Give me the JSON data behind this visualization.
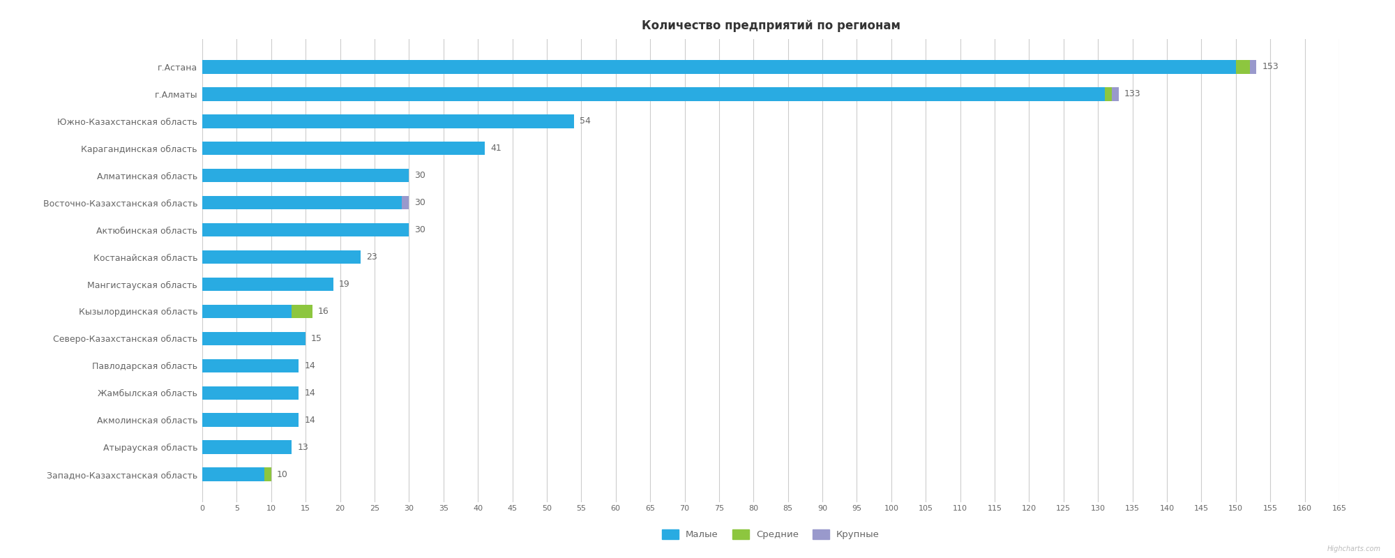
{
  "title": "Количество предприятий по регионам",
  "categories": [
    "г.Астана",
    "г.Алматы",
    "Южно-Казахстанская область",
    "Карагандинская область",
    "Алматинская область",
    "Восточно-Казахстанская область",
    "Актюбинская область",
    "Костанайская область",
    "Мангистауская область",
    "Кызылординская область",
    "Северо-Казахстанская область",
    "Павлодарская область",
    "Жамбылская область",
    "Акмолинская область",
    "Атырауская область",
    "Западно-Казахстанская область"
  ],
  "малые": [
    150,
    131,
    54,
    41,
    30,
    29,
    30,
    23,
    19,
    13,
    15,
    14,
    14,
    14,
    13,
    9
  ],
  "средние": [
    2,
    1,
    0,
    0,
    0,
    0,
    0,
    0,
    0,
    3,
    0,
    0,
    0,
    0,
    0,
    1
  ],
  "крупные": [
    1,
    1,
    0,
    0,
    0,
    1,
    0,
    0,
    0,
    0,
    0,
    0,
    0,
    0,
    0,
    0
  ],
  "totals": [
    153,
    133,
    54,
    41,
    30,
    30,
    30,
    23,
    19,
    16,
    15,
    14,
    14,
    14,
    13,
    10
  ],
  "color_малые": "#29ABE2",
  "color_средние": "#8DC63F",
  "color_крупные": "#9999CC",
  "legend_labels": [
    "Малые",
    "Средние",
    "Крупные"
  ],
  "background_color": "#FFFFFF",
  "grid_color": "#CCCCCC",
  "text_color": "#666666",
  "title_color": "#333333",
  "xlim": [
    0,
    165
  ],
  "xticks": [
    0,
    5,
    10,
    15,
    20,
    25,
    30,
    35,
    40,
    45,
    50,
    55,
    60,
    65,
    70,
    75,
    80,
    85,
    90,
    95,
    100,
    105,
    110,
    115,
    120,
    125,
    130,
    135,
    140,
    145,
    150,
    155,
    160,
    165
  ],
  "bar_height": 0.5,
  "label_fontsize": 9,
  "tick_fontsize": 9,
  "title_fontsize": 12,
  "watermark": "Highcharts.com"
}
